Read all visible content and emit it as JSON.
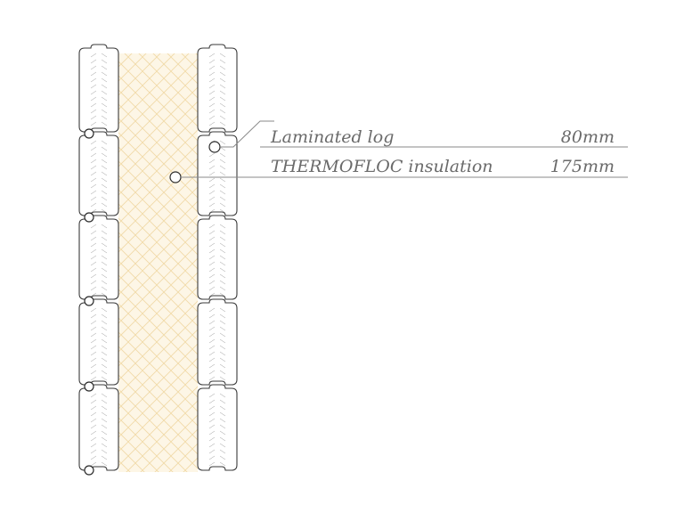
{
  "diagram": {
    "layers": [
      {
        "name": "Laminated log",
        "thickness": "80mm"
      },
      {
        "name": "THERMOFLOC insulation",
        "thickness": "175mm"
      }
    ],
    "colors": {
      "insulation_fill": "#fdf6e6",
      "insulation_hatch": "#f1d9a6",
      "log_outline": "#3a3a3a",
      "leader_line": "#8a8a8a",
      "label_text": "#6a6a6a"
    }
  }
}
